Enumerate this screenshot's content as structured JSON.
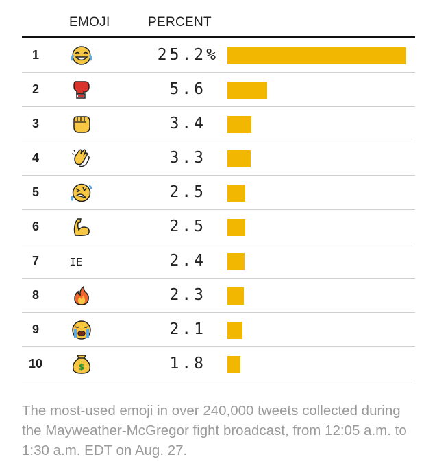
{
  "headers": {
    "emoji": "EMOJI",
    "percent": "PERCENT"
  },
  "colors": {
    "bar": "#f2b701",
    "text": "#222222",
    "caption": "#9a9a9a",
    "rule": "#111111"
  },
  "chart_data": {
    "type": "bar",
    "orientation": "horizontal",
    "categories": [
      "1",
      "2",
      "3",
      "4",
      "5",
      "6",
      "7",
      "8",
      "9",
      "10"
    ],
    "values": [
      25.2,
      5.6,
      3.4,
      3.3,
      2.5,
      2.5,
      2.4,
      2.3,
      2.1,
      1.8
    ],
    "value_labels": [
      "25.2%",
      "5.6",
      "3.4",
      "3.3",
      "2.5",
      "2.5",
      "2.4",
      "2.3",
      "2.1",
      "1.8"
    ],
    "emoji_icons": [
      "face-with-tears-of-joy-icon",
      "boxing-glove-icon",
      "oncoming-fist-icon",
      "clapping-hands-icon",
      "rolling-on-the-floor-laughing-icon",
      "flexed-biceps-icon",
      null,
      "fire-icon",
      "loudly-crying-face-icon",
      "money-bag-icon"
    ],
    "emoji_text": {
      "6": "IE"
    },
    "xlim": [
      0,
      25.2
    ]
  },
  "caption": "The most-used emoji in over 240,000 tweets collected during the Mayweather-McGregor fight broadcast, from 12:05 a.m. to 1:30 a.m. EDT on Aug. 27."
}
